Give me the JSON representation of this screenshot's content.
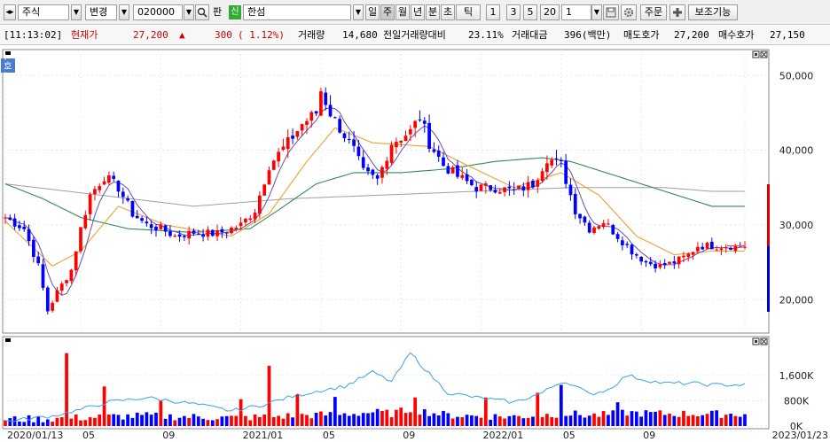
{
  "toolbar": {
    "market": "주식",
    "mode": "변경",
    "code": "020000",
    "pan_label": "판",
    "sin_badge": "신",
    "name": "한섬",
    "period_buttons": [
      "일",
      "주",
      "월",
      "년",
      "분",
      "초",
      "틱"
    ],
    "active_period": "주",
    "interval_buttons": [
      "1",
      "3",
      "5",
      "20"
    ],
    "count_value": "1",
    "order_label": "주문",
    "aux_label": "보조기능"
  },
  "quote": {
    "time": "[11:13:02]",
    "price_label": "현재가",
    "price": "27,200",
    "arrow": "▲",
    "change": "300",
    "change_pct": "( 1.12%)",
    "volume_label": "거래량",
    "volume": "14,680",
    "prev_ratio_label": "전일거래량대비",
    "prev_ratio": "23.11%",
    "amount_label": "거래대금",
    "amount": "396(백만)",
    "ask_label": "매도호가",
    "ask": "27,200",
    "bid_label": "매수호가",
    "bid": "27,150"
  },
  "chart_panel": {
    "corner_tag": "호"
  },
  "chart_data": [
    {
      "type": "candlestick",
      "title": "",
      "ylim": [
        16000,
        53000
      ],
      "y_ticks": [
        "50,000",
        "40,000",
        "30,000",
        "20,000"
      ],
      "y_tick_values": [
        50000,
        40000,
        30000,
        20000
      ],
      "x_labels": [
        "2020/01/13",
        "05",
        "09",
        "2021/01",
        "05",
        "09",
        "2022/01",
        "05",
        "09",
        "2023/01/23"
      ],
      "n_weeks": 158,
      "label_weeks": [
        0,
        16,
        33,
        50,
        67,
        84,
        101,
        118,
        135,
        157
      ],
      "colors": {
        "up": "#ff0000",
        "down": "#0000ff",
        "ma5": "#6b4ea8",
        "ma20": "#f0a030",
        "ma60": "#2e8b57",
        "ma120": "#a0a0a0"
      },
      "price_anchors": [
        [
          0,
          31000
        ],
        [
          4,
          29500
        ],
        [
          7,
          24500
        ],
        [
          9,
          18500
        ],
        [
          11,
          21000
        ],
        [
          14,
          24000
        ],
        [
          16,
          29500
        ],
        [
          18,
          34000
        ],
        [
          21,
          36500
        ],
        [
          24,
          35000
        ],
        [
          27,
          31500
        ],
        [
          30,
          30000
        ],
        [
          33,
          29500
        ],
        [
          36,
          28500
        ],
        [
          40,
          29000
        ],
        [
          45,
          28800
        ],
        [
          50,
          30000
        ],
        [
          53,
          32000
        ],
        [
          56,
          38000
        ],
        [
          60,
          41000
        ],
        [
          63,
          43500
        ],
        [
          66,
          45000
        ],
        [
          67,
          48000
        ],
        [
          69,
          45000
        ],
        [
          71,
          43000
        ],
        [
          74,
          40000
        ],
        [
          76,
          37000
        ],
        [
          79,
          36000
        ],
        [
          82,
          41000
        ],
        [
          86,
          42500
        ],
        [
          88,
          44500
        ],
        [
          90,
          41000
        ],
        [
          93,
          38000
        ],
        [
          96,
          36500
        ],
        [
          100,
          35000
        ],
        [
          104,
          35000
        ],
        [
          108,
          34500
        ],
        [
          112,
          35500
        ],
        [
          115,
          39000
        ],
        [
          118,
          38000
        ],
        [
          121,
          32000
        ],
        [
          124,
          29500
        ],
        [
          127,
          30500
        ],
        [
          130,
          28500
        ],
        [
          133,
          26500
        ],
        [
          136,
          25000
        ],
        [
          139,
          24500
        ],
        [
          142,
          25000
        ],
        [
          145,
          26000
        ],
        [
          147,
          27200
        ],
        [
          150,
          27200
        ]
      ],
      "ma20_anchors": [
        [
          0,
          30500
        ],
        [
          10,
          24500
        ],
        [
          16,
          26500
        ],
        [
          24,
          32500
        ],
        [
          34,
          30000
        ],
        [
          48,
          28500
        ],
        [
          56,
          31500
        ],
        [
          64,
          38500
        ],
        [
          70,
          43000
        ],
        [
          78,
          41000
        ],
        [
          90,
          40500
        ],
        [
          98,
          38000
        ],
        [
          108,
          35000
        ],
        [
          118,
          37000
        ],
        [
          126,
          34000
        ],
        [
          134,
          28500
        ],
        [
          142,
          26000
        ],
        [
          150,
          26500
        ]
      ],
      "ma60_anchors": [
        [
          0,
          35500
        ],
        [
          8,
          33500
        ],
        [
          16,
          31000
        ],
        [
          26,
          29500
        ],
        [
          40,
          29000
        ],
        [
          52,
          29500
        ],
        [
          58,
          32000
        ],
        [
          66,
          35500
        ],
        [
          74,
          37000
        ],
        [
          84,
          37000
        ],
        [
          94,
          37500
        ],
        [
          104,
          38500
        ],
        [
          114,
          39000
        ],
        [
          120,
          38500
        ],
        [
          130,
          36500
        ],
        [
          140,
          34500
        ],
        [
          150,
          32500
        ]
      ],
      "ma120_anchors": [
        [
          0,
          35500
        ],
        [
          20,
          34000
        ],
        [
          40,
          32500
        ],
        [
          60,
          33500
        ],
        [
          80,
          34000
        ],
        [
          100,
          34500
        ],
        [
          120,
          35000
        ],
        [
          140,
          35000
        ],
        [
          150,
          34500
        ]
      ],
      "last_price": 27200
    },
    {
      "type": "bar",
      "title": "",
      "y_ticks": [
        "1,600K",
        "800K",
        "0K"
      ],
      "y_tick_values": [
        1600,
        800,
        0
      ],
      "ylim": [
        0,
        2600
      ],
      "unit": "K",
      "line_anchors": [
        [
          0,
          150
        ],
        [
          10,
          320
        ],
        [
          16,
          520
        ],
        [
          22,
          760
        ],
        [
          30,
          900
        ],
        [
          40,
          700
        ],
        [
          48,
          480
        ],
        [
          54,
          650
        ],
        [
          60,
          900
        ],
        [
          66,
          1100
        ],
        [
          72,
          1250
        ],
        [
          78,
          1700
        ],
        [
          82,
          1400
        ],
        [
          86,
          2300
        ],
        [
          90,
          1650
        ],
        [
          94,
          1050
        ],
        [
          100,
          900
        ],
        [
          108,
          750
        ],
        [
          114,
          1050
        ],
        [
          118,
          1400
        ],
        [
          120,
          1350
        ],
        [
          124,
          1000
        ],
        [
          128,
          1150
        ],
        [
          132,
          1600
        ],
        [
          136,
          1450
        ],
        [
          140,
          1350
        ],
        [
          146,
          1350
        ],
        [
          150,
          1300
        ]
      ],
      "spike_weeks": [
        [
          13,
          2300
        ],
        [
          21,
          1250
        ],
        [
          33,
          800
        ],
        [
          50,
          850
        ],
        [
          56,
          1900
        ],
        [
          62,
          1000
        ],
        [
          70,
          920
        ],
        [
          87,
          900
        ],
        [
          102,
          900
        ],
        [
          113,
          1050
        ],
        [
          118,
          1300
        ],
        [
          130,
          750
        ]
      ]
    }
  ]
}
